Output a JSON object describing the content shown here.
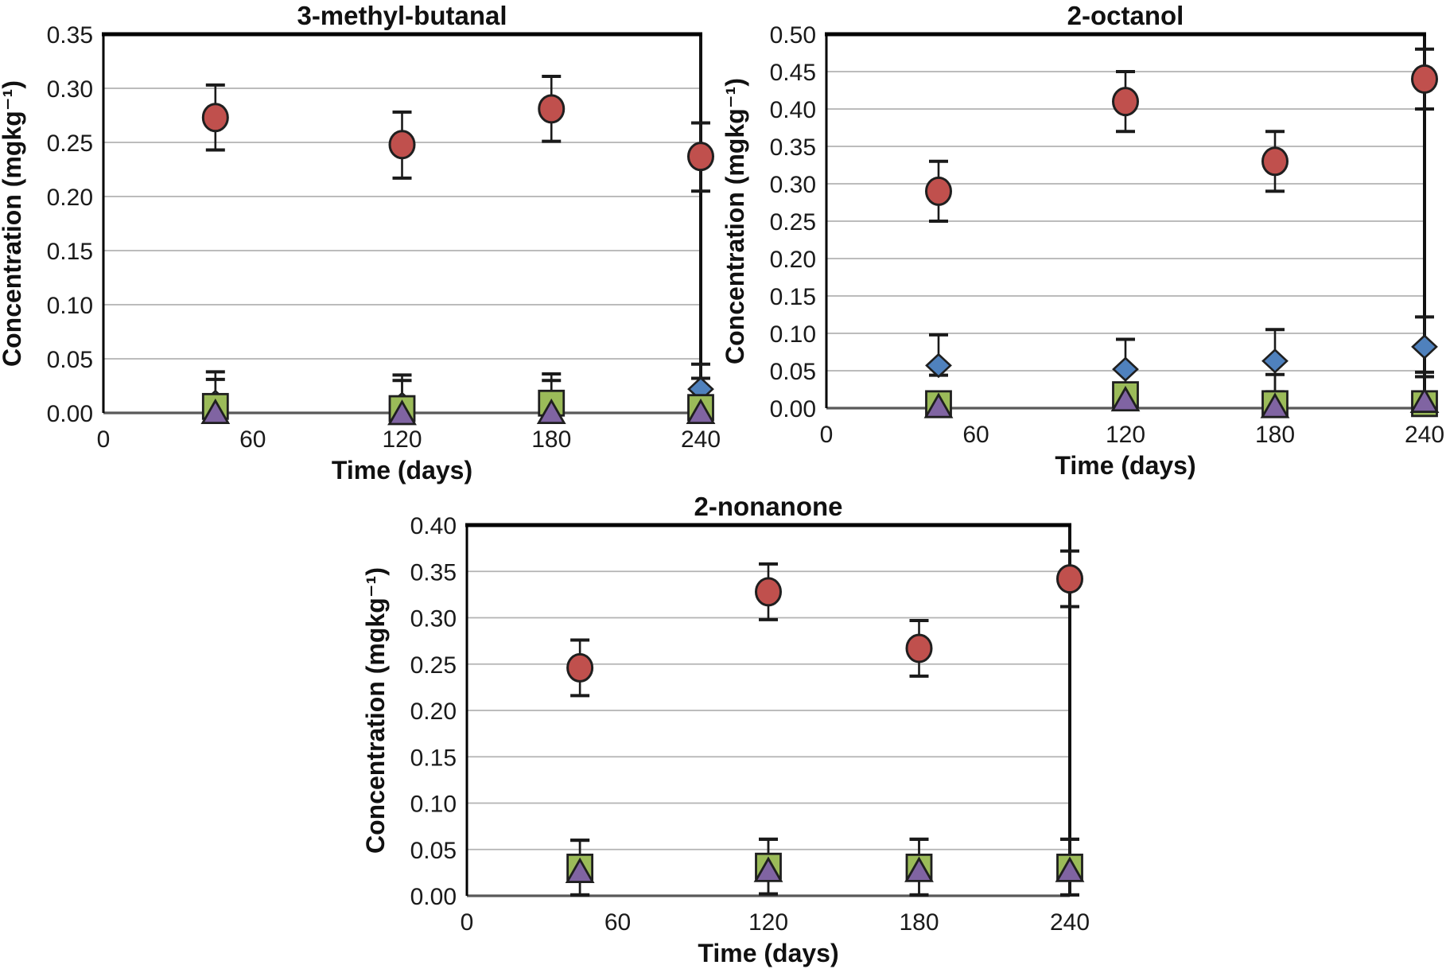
{
  "figure": {
    "background": "#ffffff",
    "grid_color": "#b3b3b3",
    "errorbar_color": "#1a1a1a"
  },
  "chart_data": [
    {
      "id": "chart-3-methyl-butanal",
      "type": "scatter",
      "title": "3-methyl-butanal",
      "xlabel": "Time (days)",
      "ylabel": "Concentration (mgkg⁻¹)",
      "xlim": [
        0,
        240
      ],
      "ylim": [
        0,
        0.35
      ],
      "ytick_step": 0.05,
      "xticks": [
        0,
        60,
        120,
        180,
        240
      ],
      "grid": true,
      "legend": "none",
      "x": [
        45,
        120,
        180,
        240
      ],
      "series": [
        {
          "name": "red-circles",
          "marker": "circle",
          "color": "#C0504D",
          "values": [
            0.273,
            0.248,
            0.281,
            0.237
          ],
          "err_lo": [
            0.243,
            0.217,
            0.251,
            0.205
          ],
          "err_hi": [
            0.303,
            0.278,
            0.311,
            0.268
          ]
        },
        {
          "name": "blue-diamonds",
          "marker": "diamond",
          "color": "#4F81BD",
          "values": [
            0.01,
            0.008,
            0.006,
            0.022
          ],
          "err_lo": [
            0.0,
            0.0,
            0.0,
            0.0
          ],
          "err_hi": [
            0.038,
            0.035,
            0.036,
            0.045
          ]
        },
        {
          "name": "green-squares",
          "marker": "square",
          "color": "#9BBB59",
          "values": [
            0.006,
            0.004,
            0.009,
            0.005
          ],
          "err_lo": [
            0.0,
            0.0,
            0.0,
            0.0
          ],
          "err_hi": [
            0.031,
            0.03,
            0.03,
            0.032
          ]
        },
        {
          "name": "purple-triangles",
          "marker": "triangle",
          "color": "#8064A2",
          "values": [
            0.001,
            0.0,
            0.001,
            0.001
          ],
          "err_lo": [
            0.001,
            0.0,
            0.001,
            0.001
          ],
          "err_hi": [
            0.001,
            0.0,
            0.001,
            0.001
          ]
        }
      ]
    },
    {
      "id": "chart-2-octanol",
      "type": "scatter",
      "title": "2-octanol",
      "xlabel": "Time (days)",
      "ylabel": "Concentration (mgkg⁻¹)",
      "xlim": [
        0,
        240
      ],
      "ylim": [
        0,
        0.5
      ],
      "ytick_step": 0.05,
      "xticks": [
        0,
        60,
        120,
        180,
        240
      ],
      "grid": true,
      "legend": "none",
      "x": [
        45,
        120,
        180,
        240
      ],
      "series": [
        {
          "name": "red-circles",
          "marker": "circle",
          "color": "#C0504D",
          "values": [
            0.29,
            0.41,
            0.33,
            0.44
          ],
          "err_lo": [
            0.25,
            0.37,
            0.29,
            0.4
          ],
          "err_hi": [
            0.33,
            0.45,
            0.37,
            0.48
          ]
        },
        {
          "name": "blue-diamonds",
          "marker": "diamond",
          "color": "#4F81BD",
          "values": [
            0.057,
            0.052,
            0.063,
            0.082
          ],
          "err_lo": [
            0.044,
            0.03,
            0.022,
            0.042
          ],
          "err_hi": [
            0.098,
            0.092,
            0.105,
            0.122
          ]
        },
        {
          "name": "green-squares",
          "marker": "square",
          "color": "#9BBB59",
          "values": [
            0.006,
            0.018,
            0.006,
            0.006
          ],
          "err_lo": [
            0.0,
            0.0,
            0.0,
            0.0
          ],
          "err_hi": [
            0.016,
            0.03,
            0.045,
            0.048
          ]
        },
        {
          "name": "purple-triangles",
          "marker": "triangle",
          "color": "#8064A2",
          "values": [
            0.003,
            0.012,
            0.003,
            0.01
          ],
          "err_lo": [
            0.003,
            0.012,
            0.003,
            0.01
          ],
          "err_hi": [
            0.003,
            0.012,
            0.003,
            0.01
          ]
        }
      ]
    },
    {
      "id": "chart-2-nonanone",
      "type": "scatter",
      "title": "2-nonanone",
      "xlabel": "Time (days)",
      "ylabel": "Concentration (mgkg⁻¹)",
      "xlim": [
        0,
        240
      ],
      "ylim": [
        0,
        0.4
      ],
      "ytick_step": 0.05,
      "xticks": [
        0,
        60,
        120,
        180,
        240
      ],
      "grid": true,
      "legend": "none",
      "x": [
        45,
        120,
        180,
        240
      ],
      "series": [
        {
          "name": "red-circles",
          "marker": "circle",
          "color": "#C0504D",
          "values": [
            0.246,
            0.328,
            0.267,
            0.342
          ],
          "err_lo": [
            0.216,
            0.298,
            0.237,
            0.312
          ],
          "err_hi": [
            0.276,
            0.358,
            0.297,
            0.372
          ]
        },
        {
          "name": "green-squares",
          "marker": "square",
          "color": "#9BBB59",
          "values": [
            0.031,
            0.032,
            0.031,
            0.031
          ],
          "err_lo": [
            0.001,
            0.002,
            0.001,
            0.001
          ],
          "err_hi": [
            0.06,
            0.061,
            0.061,
            0.061
          ]
        },
        {
          "name": "purple-triangles",
          "marker": "triangle",
          "color": "#8064A2",
          "values": [
            0.027,
            0.028,
            0.028,
            0.028
          ],
          "err_lo": [
            0.001,
            0.002,
            0.001,
            0.001
          ],
          "err_hi": [
            0.06,
            0.061,
            0.061,
            0.061
          ]
        }
      ]
    }
  ]
}
